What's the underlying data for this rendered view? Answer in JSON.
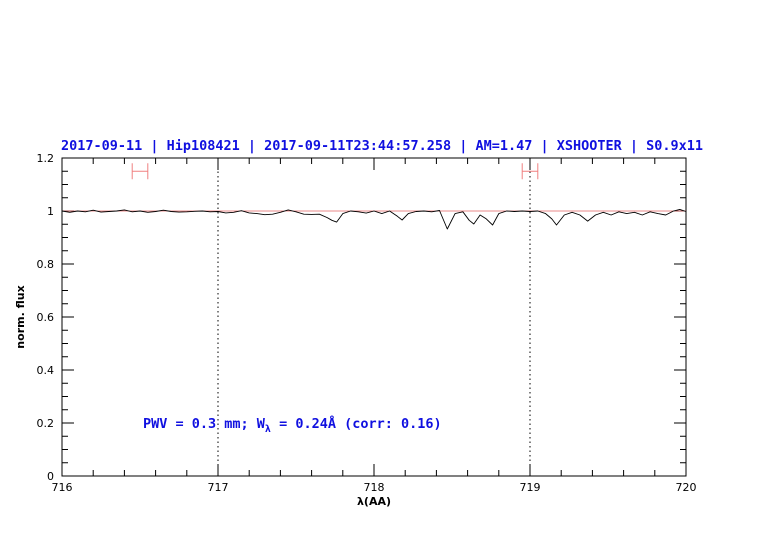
{
  "chart_data": {
    "type": "line",
    "title": "2017-09-11 | Hip108421 | 2017-09-11T23:44:57.258 | AM=1.47 | XSHOOTER | S0.9x11",
    "xlabel": "λ(AA)",
    "ylabel": "norm. flux",
    "xlim": [
      716,
      720
    ],
    "ylim": [
      0,
      1.2
    ],
    "xticks": [
      "716",
      "717",
      "718",
      "719",
      "720"
    ],
    "yticks": [
      "0",
      "0.2",
      "0.4",
      "0.6",
      "0.8",
      "1",
      "1.2"
    ],
    "grid": false,
    "annotation": {
      "prefix": "PWV = 0.3 mm; W",
      "sub": "λ",
      "suffix": " = 0.24Å (corr: 0.16)"
    },
    "reference_line": 1.0,
    "vertical_dotted_lines": [
      717,
      719
    ],
    "error_bars": [
      {
        "x": [
          716.45,
          716.55
        ],
        "y": 1.15
      },
      {
        "x": [
          718.95,
          719.05
        ],
        "y": 1.15
      }
    ],
    "colors": {
      "spectrum": "#000000",
      "reference": "#e06060",
      "error_bars": "#f08080",
      "text": "#1010e0"
    },
    "x": [
      716.0,
      716.05,
      716.1,
      716.15,
      716.2,
      716.25,
      716.3,
      716.35,
      716.4,
      716.45,
      716.5,
      716.55,
      716.6,
      716.65,
      716.7,
      716.75,
      716.8,
      716.85,
      716.9,
      716.95,
      717.0,
      717.05,
      717.1,
      717.15,
      717.2,
      717.25,
      717.3,
      717.35,
      717.4,
      717.45,
      717.5,
      717.55,
      717.6,
      717.65,
      717.7,
      717.73,
      717.76,
      717.8,
      717.85,
      717.9,
      717.95,
      718.0,
      718.05,
      718.1,
      718.15,
      718.18,
      718.22,
      718.27,
      718.32,
      718.37,
      718.42,
      718.47,
      718.52,
      718.57,
      718.61,
      718.64,
      718.68,
      718.72,
      718.76,
      718.8,
      718.85,
      718.9,
      718.95,
      719.0,
      719.05,
      719.1,
      719.14,
      719.17,
      719.22,
      719.27,
      719.32,
      719.37,
      719.42,
      719.47,
      719.52,
      719.57,
      719.62,
      719.67,
      719.72,
      719.77,
      719.82,
      719.87,
      719.92,
      719.96,
      720.0
    ],
    "y": [
      1.0,
      0.995,
      1.0,
      0.997,
      1.003,
      0.996,
      0.998,
      1.0,
      1.004,
      0.997,
      1.0,
      0.995,
      0.998,
      1.003,
      0.998,
      0.996,
      0.997,
      0.999,
      1.0,
      0.997,
      0.998,
      0.993,
      0.995,
      1.001,
      0.993,
      0.99,
      0.986,
      0.988,
      0.995,
      1.004,
      0.997,
      0.988,
      0.987,
      0.988,
      0.975,
      0.965,
      0.958,
      0.99,
      1.0,
      0.997,
      0.992,
      1.0,
      0.99,
      1.0,
      0.98,
      0.966,
      0.99,
      0.998,
      1.0,
      0.997,
      1.002,
      0.932,
      0.99,
      0.997,
      0.965,
      0.951,
      0.985,
      0.97,
      0.947,
      0.99,
      1.0,
      0.998,
      1.0,
      0.998,
      1.0,
      0.99,
      0.97,
      0.947,
      0.985,
      0.995,
      0.985,
      0.962,
      0.985,
      0.995,
      0.985,
      0.997,
      0.99,
      0.995,
      0.985,
      0.997,
      0.99,
      0.985,
      1.0,
      1.006,
      0.998
    ]
  }
}
